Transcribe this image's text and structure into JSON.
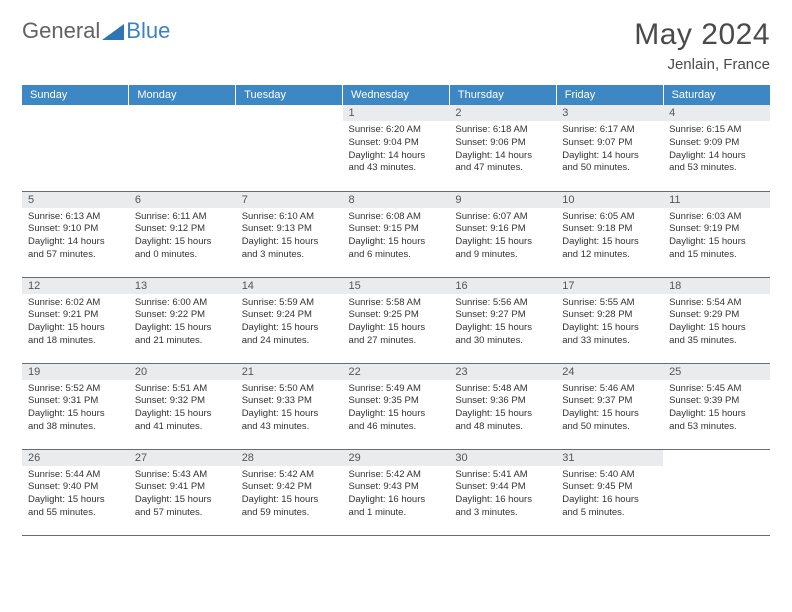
{
  "logo": {
    "word1": "General",
    "word2": "Blue",
    "triangle_color": "#2f74b5"
  },
  "header": {
    "month": "May 2024",
    "location": "Jenlain, France"
  },
  "colors": {
    "header_bg": "#3d87c5",
    "header_fg": "#ffffff",
    "daynum_bg": "#e9ebed",
    "cell_border": "#6a6d70",
    "text": "#333333"
  },
  "weekdays": [
    "Sunday",
    "Monday",
    "Tuesday",
    "Wednesday",
    "Thursday",
    "Friday",
    "Saturday"
  ],
  "weeks": [
    [
      null,
      null,
      null,
      {
        "n": "1",
        "sunrise": "6:20 AM",
        "sunset": "9:04 PM",
        "daylight": "14 hours and 43 minutes."
      },
      {
        "n": "2",
        "sunrise": "6:18 AM",
        "sunset": "9:06 PM",
        "daylight": "14 hours and 47 minutes."
      },
      {
        "n": "3",
        "sunrise": "6:17 AM",
        "sunset": "9:07 PM",
        "daylight": "14 hours and 50 minutes."
      },
      {
        "n": "4",
        "sunrise": "6:15 AM",
        "sunset": "9:09 PM",
        "daylight": "14 hours and 53 minutes."
      }
    ],
    [
      {
        "n": "5",
        "sunrise": "6:13 AM",
        "sunset": "9:10 PM",
        "daylight": "14 hours and 57 minutes."
      },
      {
        "n": "6",
        "sunrise": "6:11 AM",
        "sunset": "9:12 PM",
        "daylight": "15 hours and 0 minutes."
      },
      {
        "n": "7",
        "sunrise": "6:10 AM",
        "sunset": "9:13 PM",
        "daylight": "15 hours and 3 minutes."
      },
      {
        "n": "8",
        "sunrise": "6:08 AM",
        "sunset": "9:15 PM",
        "daylight": "15 hours and 6 minutes."
      },
      {
        "n": "9",
        "sunrise": "6:07 AM",
        "sunset": "9:16 PM",
        "daylight": "15 hours and 9 minutes."
      },
      {
        "n": "10",
        "sunrise": "6:05 AM",
        "sunset": "9:18 PM",
        "daylight": "15 hours and 12 minutes."
      },
      {
        "n": "11",
        "sunrise": "6:03 AM",
        "sunset": "9:19 PM",
        "daylight": "15 hours and 15 minutes."
      }
    ],
    [
      {
        "n": "12",
        "sunrise": "6:02 AM",
        "sunset": "9:21 PM",
        "daylight": "15 hours and 18 minutes."
      },
      {
        "n": "13",
        "sunrise": "6:00 AM",
        "sunset": "9:22 PM",
        "daylight": "15 hours and 21 minutes."
      },
      {
        "n": "14",
        "sunrise": "5:59 AM",
        "sunset": "9:24 PM",
        "daylight": "15 hours and 24 minutes."
      },
      {
        "n": "15",
        "sunrise": "5:58 AM",
        "sunset": "9:25 PM",
        "daylight": "15 hours and 27 minutes."
      },
      {
        "n": "16",
        "sunrise": "5:56 AM",
        "sunset": "9:27 PM",
        "daylight": "15 hours and 30 minutes."
      },
      {
        "n": "17",
        "sunrise": "5:55 AM",
        "sunset": "9:28 PM",
        "daylight": "15 hours and 33 minutes."
      },
      {
        "n": "18",
        "sunrise": "5:54 AM",
        "sunset": "9:29 PM",
        "daylight": "15 hours and 35 minutes."
      }
    ],
    [
      {
        "n": "19",
        "sunrise": "5:52 AM",
        "sunset": "9:31 PM",
        "daylight": "15 hours and 38 minutes."
      },
      {
        "n": "20",
        "sunrise": "5:51 AM",
        "sunset": "9:32 PM",
        "daylight": "15 hours and 41 minutes."
      },
      {
        "n": "21",
        "sunrise": "5:50 AM",
        "sunset": "9:33 PM",
        "daylight": "15 hours and 43 minutes."
      },
      {
        "n": "22",
        "sunrise": "5:49 AM",
        "sunset": "9:35 PM",
        "daylight": "15 hours and 46 minutes."
      },
      {
        "n": "23",
        "sunrise": "5:48 AM",
        "sunset": "9:36 PM",
        "daylight": "15 hours and 48 minutes."
      },
      {
        "n": "24",
        "sunrise": "5:46 AM",
        "sunset": "9:37 PM",
        "daylight": "15 hours and 50 minutes."
      },
      {
        "n": "25",
        "sunrise": "5:45 AM",
        "sunset": "9:39 PM",
        "daylight": "15 hours and 53 minutes."
      }
    ],
    [
      {
        "n": "26",
        "sunrise": "5:44 AM",
        "sunset": "9:40 PM",
        "daylight": "15 hours and 55 minutes."
      },
      {
        "n": "27",
        "sunrise": "5:43 AM",
        "sunset": "9:41 PM",
        "daylight": "15 hours and 57 minutes."
      },
      {
        "n": "28",
        "sunrise": "5:42 AM",
        "sunset": "9:42 PM",
        "daylight": "15 hours and 59 minutes."
      },
      {
        "n": "29",
        "sunrise": "5:42 AM",
        "sunset": "9:43 PM",
        "daylight": "16 hours and 1 minute."
      },
      {
        "n": "30",
        "sunrise": "5:41 AM",
        "sunset": "9:44 PM",
        "daylight": "16 hours and 3 minutes."
      },
      {
        "n": "31",
        "sunrise": "5:40 AM",
        "sunset": "9:45 PM",
        "daylight": "16 hours and 5 minutes."
      },
      null
    ]
  ],
  "labels": {
    "sunrise": "Sunrise:",
    "sunset": "Sunset:",
    "daylight": "Daylight:"
  }
}
